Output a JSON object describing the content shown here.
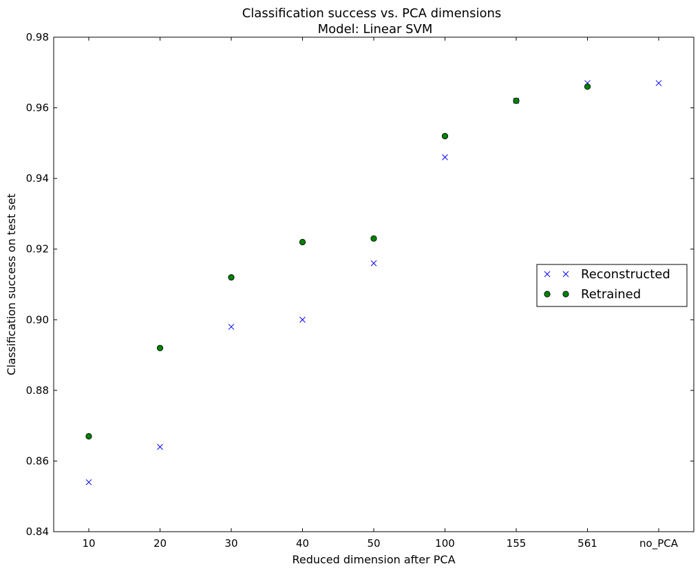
{
  "chart_data": {
    "type": "scatter",
    "title": "Classification success vs. PCA dimensions",
    "subtitle": "Model: Linear SVM",
    "xlabel": "Reduced dimension after PCA",
    "ylabel": "Classification success on test set",
    "categories": [
      "10",
      "20",
      "30",
      "40",
      "50",
      "100",
      "155",
      "561",
      "no_PCA"
    ],
    "ylim": [
      0.84,
      0.98
    ],
    "yticks": [
      "0.84",
      "0.86",
      "0.88",
      "0.90",
      "0.92",
      "0.94",
      "0.96",
      "0.98"
    ],
    "grid": false,
    "legend_position": "right",
    "series": [
      {
        "name": "Reconstructed",
        "marker": "x",
        "color": "#0000ff",
        "values": [
          0.854,
          0.864,
          0.898,
          0.9,
          0.916,
          0.946,
          0.962,
          0.967,
          0.967
        ]
      },
      {
        "name": "Retrained",
        "marker": "o",
        "color": "#008000",
        "values": [
          0.867,
          0.892,
          0.912,
          0.922,
          0.923,
          0.952,
          0.962,
          0.966,
          null
        ]
      }
    ]
  }
}
